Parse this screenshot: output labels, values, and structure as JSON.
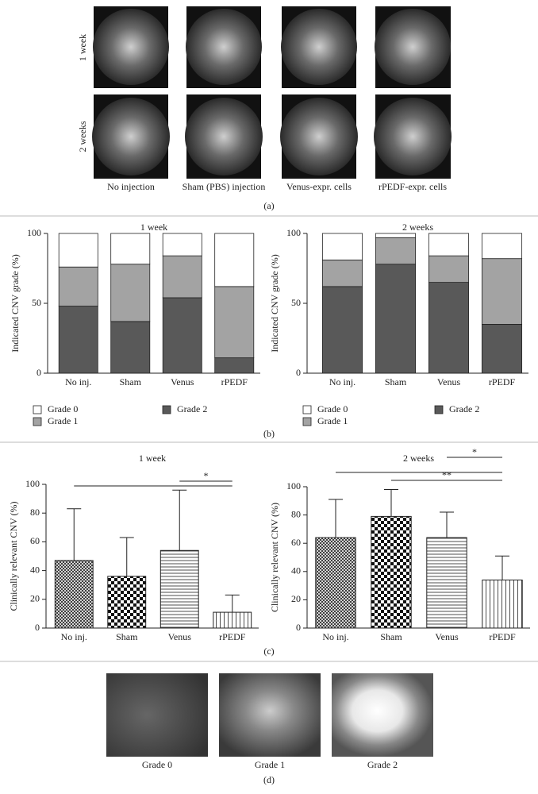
{
  "panel_a": {
    "row_labels": [
      "1 week",
      "2 weeks"
    ],
    "column_labels": [
      "No injection",
      "Sham (PBS) injection",
      "Venus-expr. cells",
      "rPEDF-expr. cells"
    ],
    "label": "(a)"
  },
  "panel_b_label": "(b)",
  "panel_c_label": "(c)",
  "panel_d": {
    "image_labels": [
      "Grade 0",
      "Grade 1",
      "Grade 2"
    ],
    "label": "(d)"
  },
  "chart_data": [
    {
      "type": "stacked_bar",
      "title": "1 week",
      "y_label": "Indicated CNV grade (%)",
      "categories": [
        "No inj.",
        "Sham",
        "Venus",
        "rPEDF"
      ],
      "series": [
        {
          "name": "Grade 0",
          "color": "#ffffff",
          "values": [
            24,
            22,
            16,
            38
          ]
        },
        {
          "name": "Grade 1",
          "color": "#a3a3a3",
          "values": [
            28,
            41,
            30,
            51
          ]
        },
        {
          "name": "Grade 2",
          "color": "#595959",
          "values": [
            48,
            37,
            54,
            11
          ]
        }
      ],
      "ylim": [
        0,
        100
      ],
      "yticks": [
        0,
        50,
        100
      ]
    },
    {
      "type": "stacked_bar",
      "title": "2 weeks",
      "y_label": "Indicated CNV grade (%)",
      "categories": [
        "No inj.",
        "Sham",
        "Venus",
        "rPEDF"
      ],
      "series": [
        {
          "name": "Grade 0",
          "color": "#ffffff",
          "values": [
            19,
            3,
            16,
            18
          ]
        },
        {
          "name": "Grade 1",
          "color": "#a3a3a3",
          "values": [
            19,
            19,
            19,
            47
          ]
        },
        {
          "name": "Grade 2",
          "color": "#595959",
          "values": [
            62,
            78,
            65,
            35
          ]
        }
      ],
      "ylim": [
        0,
        100
      ],
      "yticks": [
        0,
        50,
        100
      ]
    },
    {
      "type": "bar",
      "title": "1 week",
      "y_label": "Clinically relevant CNV (%)",
      "categories": [
        "No inj.",
        "Sham",
        "Venus",
        "rPEDF"
      ],
      "values": [
        47,
        36,
        54,
        11
      ],
      "errors": [
        36,
        27,
        42,
        12
      ],
      "patterns": [
        "crosshatch",
        "checker",
        "hlines",
        "vlines"
      ],
      "significance": [
        {
          "from": "Venus",
          "to": "rPEDF",
          "text": "*"
        },
        {
          "from": "No inj.",
          "to": "rPEDF"
        }
      ],
      "ylim": [
        0,
        100
      ],
      "yticks": [
        0,
        20,
        40,
        60,
        80,
        100
      ]
    },
    {
      "type": "bar",
      "title": "2 weeks",
      "y_label": "Clinically relevant CNV (%)",
      "categories": [
        "No inj.",
        "Sham",
        "Venus",
        "rPEDF"
      ],
      "values": [
        64,
        79,
        64,
        34
      ],
      "errors": [
        27,
        19,
        18,
        17
      ],
      "patterns": [
        "crosshatch",
        "checker",
        "hlines",
        "vlines"
      ],
      "significance": [
        {
          "from": "Venus",
          "to": "rPEDF",
          "text": "*"
        },
        {
          "from": "No inj.",
          "to": "rPEDF"
        },
        {
          "from": "Sham",
          "to": "rPEDF",
          "text": "**"
        }
      ],
      "ylim": [
        0,
        100
      ],
      "yticks": [
        0,
        20,
        40,
        60,
        80,
        100
      ]
    }
  ]
}
